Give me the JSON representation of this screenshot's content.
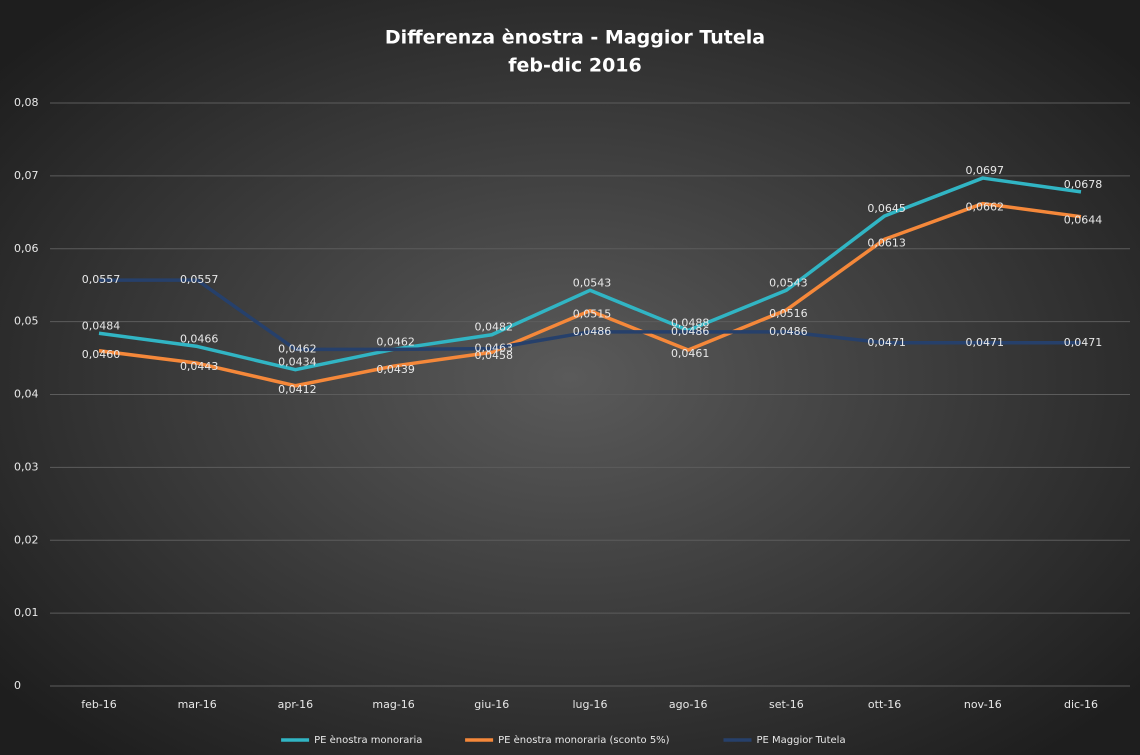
{
  "chart_data": {
    "type": "line",
    "title": "Differenza ènostra - Maggior Tutela",
    "subtitle": "feb-dic 2016",
    "categories": [
      "feb-16",
      "mar-16",
      "apr-16",
      "mag-16",
      "giu-16",
      "lug-16",
      "ago-16",
      "set-16",
      "ott-16",
      "nov-16",
      "dic-16"
    ],
    "series": [
      {
        "name": "PE ènostra monoraria",
        "color": "#31b5c4",
        "values": [
          0.0484,
          0.0466,
          0.0434,
          0.0462,
          0.0482,
          0.0543,
          0.0488,
          0.0543,
          0.0645,
          0.0697,
          0.0678
        ],
        "value_labels": [
          "0,0484",
          "0,0466",
          "0,0434",
          "0,0462",
          "0,0482",
          "0,0543",
          "0,0488",
          "0,0543",
          "0,0645",
          "0,0697",
          "0,0678"
        ]
      },
      {
        "name": "PE ènostra monoraria (sconto 5%)",
        "color": "#f5883a",
        "values": [
          0.046,
          0.0443,
          0.0412,
          0.0439,
          0.0458,
          0.0515,
          0.0461,
          0.0516,
          0.0613,
          0.0662,
          0.0644
        ],
        "value_labels": [
          "0,0460",
          "0,0443",
          "0,0412",
          "0,0439",
          "0,0458",
          "0,0515",
          "0,0461",
          "0,0516",
          "0,0613",
          "0,0662",
          "0,0644"
        ]
      },
      {
        "name": "PE Maggior Tutela",
        "color": "#26406b",
        "values": [
          0.0557,
          0.0557,
          0.0462,
          0.0462,
          0.0463,
          0.0486,
          0.0486,
          0.0486,
          0.0471,
          0.0471,
          0.0471
        ],
        "value_labels": [
          "0,0557",
          "0,0557",
          "0,0462",
          "",
          "0,0463",
          "0,0486",
          "0,0486",
          "0,0486",
          "0,0471",
          "0,0471",
          "0,0471"
        ]
      }
    ],
    "ylim": [
      0,
      0.08
    ],
    "yticks": [
      0,
      {
        "value": 0.01,
        "label": "0,01"
      },
      {
        "value": 0.02,
        "label": "0,02"
      },
      {
        "value": 0.03,
        "label": "0,03"
      },
      {
        "value": 0.04,
        "label": "0,04"
      },
      {
        "value": 0.05,
        "label": "0,05"
      },
      {
        "value": 0.06,
        "label": "0,06"
      },
      {
        "value": 0.07,
        "label": "0,07"
      },
      {
        "value": 0.08,
        "label": "0,08"
      }
    ],
    "grid": true
  }
}
